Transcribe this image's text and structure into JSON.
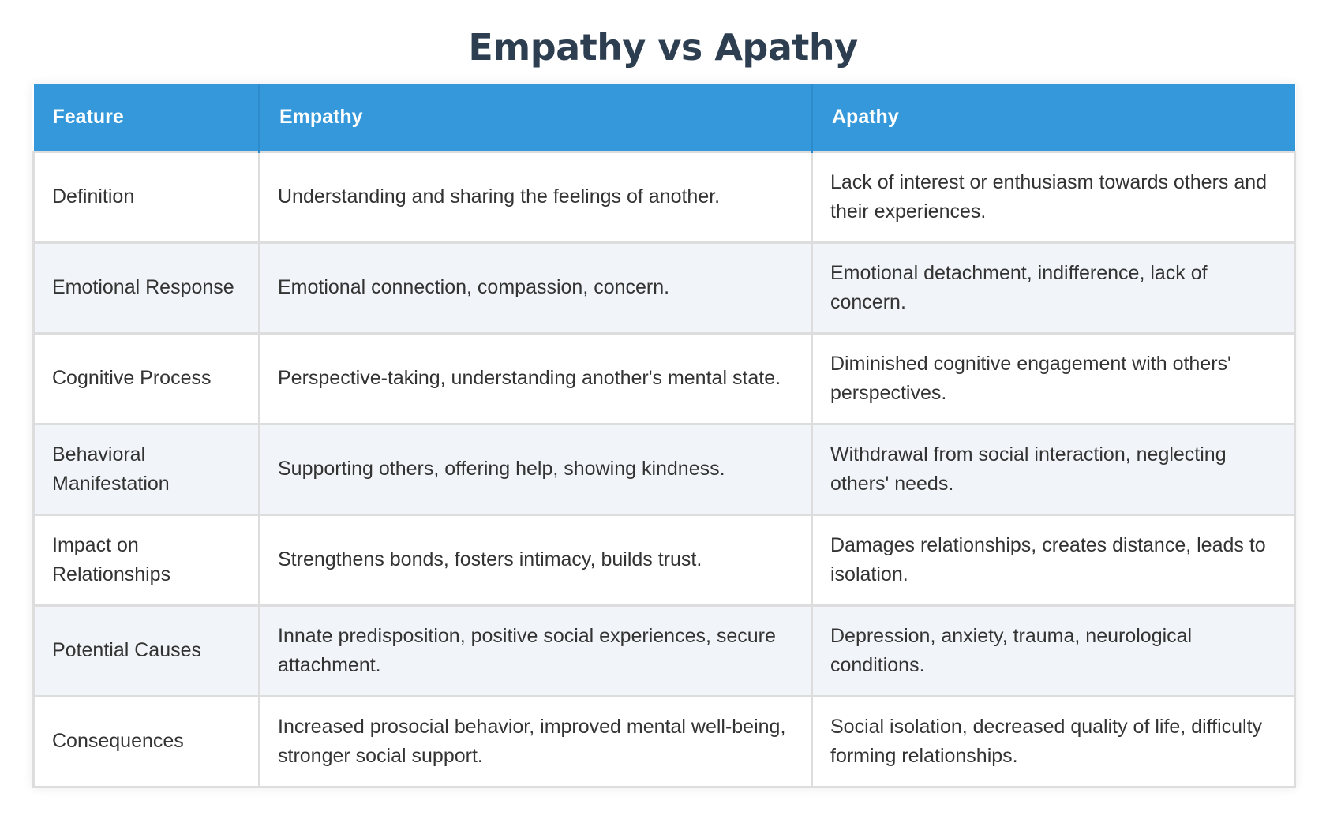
{
  "title": "Empathy vs Apathy",
  "table": {
    "headers": [
      "Feature",
      "Empathy",
      "Apathy"
    ],
    "rows": [
      [
        "Definition",
        "Understanding and sharing the feelings of another.",
        "Lack of interest or enthusiasm towards others and their experiences."
      ],
      [
        "Emotional Response",
        "Emotional connection, compassion, concern.",
        "Emotional detachment, indifference, lack of concern."
      ],
      [
        "Cognitive Process",
        "Perspective-taking, understanding another's mental state.",
        "Diminished cognitive engagement with others' perspectives."
      ],
      [
        "Behavioral Manifestation",
        "Supporting others, offering help, showing kindness.",
        "Withdrawal from social interaction, neglecting others' needs."
      ],
      [
        "Impact on Relationships",
        "Strengthens bonds, fosters intimacy, builds trust.",
        "Damages relationships, creates distance, leads to isolation."
      ],
      [
        "Potential Causes",
        "Innate predisposition, positive social experiences, secure attachment.",
        "Depression, anxiety, trauma, neurological conditions."
      ],
      [
        "Consequences",
        "Increased prosocial behavior, improved mental well-being, stronger social support.",
        "Social isolation, decreased quality of life, difficulty forming relationships."
      ]
    ]
  },
  "colors": {
    "header_bg": "#3498db",
    "title": "#2c3e50",
    "row_alt": "#f1f4f8"
  }
}
